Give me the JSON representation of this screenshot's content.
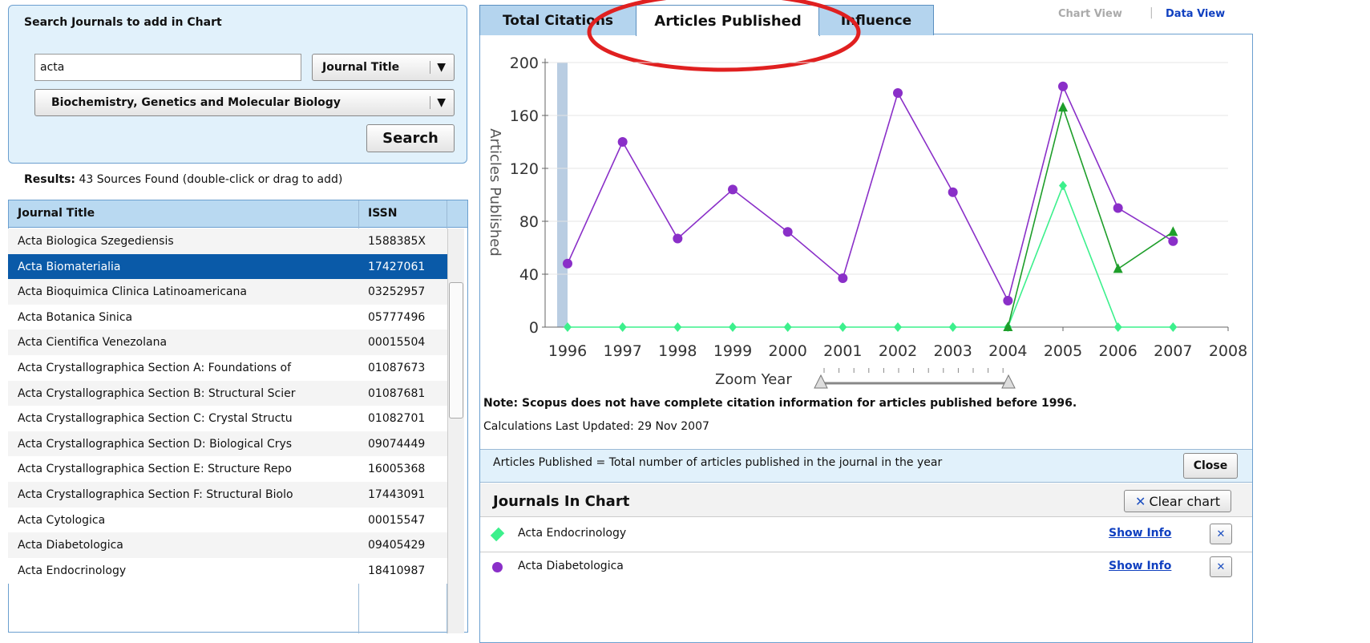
{
  "search_panel": {
    "title": "Search Journals to add in Chart",
    "query": "acta",
    "field": "Journal Title",
    "subject": "Biochemistry, Genetics and Molecular Biology",
    "button": "Search"
  },
  "results": {
    "label": "Results:",
    "text": "43 Sources Found (double-click or drag to add)"
  },
  "table": {
    "columns": [
      "Journal Title",
      "ISSN"
    ],
    "selected": 1,
    "rows": [
      [
        "Acta Biologica Szegediensis",
        "1588385X"
      ],
      [
        "Acta Biomaterialia",
        "17427061"
      ],
      [
        "Acta Bioquimica Clinica Latinoamericana",
        "03252957"
      ],
      [
        "Acta Botanica Sinica",
        "05777496"
      ],
      [
        "Acta Cientifica Venezolana",
        "00015504"
      ],
      [
        "Acta Crystallographica Section A: Foundations of",
        "01087673"
      ],
      [
        "Acta Crystallographica Section B: Structural Scier",
        "01087681"
      ],
      [
        "Acta Crystallographica Section C: Crystal Structu",
        "01082701"
      ],
      [
        "Acta Crystallographica Section D: Biological Crys",
        "09074449"
      ],
      [
        "Acta Crystallographica Section E: Structure Repo",
        "16005368"
      ],
      [
        "Acta Crystallographica Section F: Structural Biolo",
        "17443091"
      ],
      [
        "Acta Cytologica",
        "00015547"
      ],
      [
        "Acta Diabetologica",
        "09405429"
      ],
      [
        "Acta Endocrinology",
        "18410987"
      ]
    ]
  },
  "tabs": [
    "Total Citations",
    "Articles Published",
    "Influence"
  ],
  "views": [
    "Chart View",
    "Data View"
  ],
  "chart_data": {
    "type": "line",
    "y_label": "Articles Published",
    "x": [
      1996,
      1997,
      1998,
      1999,
      2000,
      2001,
      2002,
      2003,
      2004,
      2005,
      2006,
      2007
    ],
    "xlim": [
      1996,
      2008
    ],
    "xticks": [
      1996,
      1997,
      1998,
      1999,
      2000,
      2001,
      2002,
      2003,
      2004,
      2005,
      2006,
      2007,
      2008
    ],
    "ylim": [
      0,
      200
    ],
    "yticks": [
      0,
      40,
      80,
      120,
      160,
      200
    ],
    "grid": true,
    "series": [
      {
        "name": "Acta Endocrinology",
        "color": "#3cf08c",
        "marker": "diamond",
        "values": [
          0,
          0,
          0,
          0,
          0,
          0,
          0,
          0,
          0,
          107,
          0,
          0
        ]
      },
      {
        "color": "#1e9e2a",
        "marker": "triangle",
        "values": [
          null,
          null,
          null,
          null,
          null,
          null,
          null,
          null,
          0,
          166,
          44,
          72
        ]
      },
      {
        "name": "Acta Diabetologica",
        "color": "#8a2fc8",
        "marker": "circle",
        "values": [
          48,
          140,
          67,
          104,
          72,
          37,
          177,
          102,
          20,
          182,
          90,
          65
        ]
      }
    ]
  },
  "zoom_label": "Zoom Year",
  "note": "Note: Scopus does not have complete citation information for articles published before 1996.",
  "updated": "Calculations Last Updated: 29 Nov 2007",
  "definition": "Articles Published = Total number of articles published in the journal in the year",
  "close": "Close",
  "journals": {
    "title": "Journals In Chart",
    "clear": "Clear chart",
    "link": "Show Info"
  }
}
